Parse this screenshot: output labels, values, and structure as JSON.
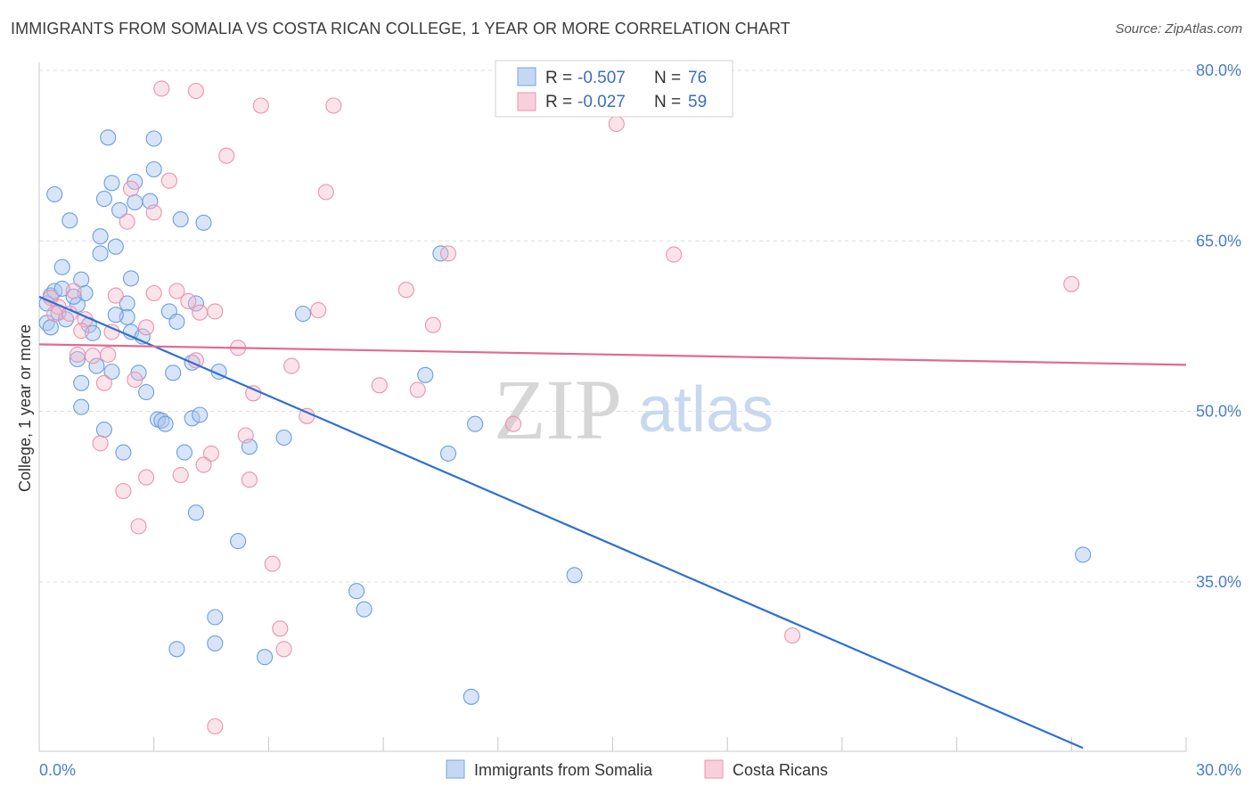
{
  "header": {
    "title": "IMMIGRANTS FROM SOMALIA VS COSTA RICAN COLLEGE, 1 YEAR OR MORE CORRELATION CHART",
    "source": "Source: ZipAtlas.com"
  },
  "watermark": {
    "zip": "ZIP",
    "atlas": "atlas"
  },
  "legend": {
    "rows": [
      {
        "r_label": "R = ",
        "r_value": "-0.507",
        "n_label": "N = ",
        "n_value": "76",
        "color": "#a9c6f0"
      },
      {
        "r_label": "R = ",
        "r_value": "-0.027",
        "n_label": "N = ",
        "n_value": "59",
        "color": "#f6b8cb"
      }
    ]
  },
  "bottom_legend": {
    "items": [
      {
        "label": "Immigrants from Somalia",
        "color": "#a9c6f0"
      },
      {
        "label": "Costa Ricans",
        "color": "#f6b8cb"
      }
    ]
  },
  "chart_data": {
    "type": "scatter",
    "title": "IMMIGRANTS FROM SOMALIA VS COSTA RICAN COLLEGE, 1 YEAR OR MORE CORRELATION CHART",
    "xlabel": "",
    "ylabel": "College, 1 year or more",
    "xlim": [
      0,
      30
    ],
    "ylim": [
      21,
      82
    ],
    "x_tick_labels": [
      "0.0%",
      "30.0%"
    ],
    "y_ticks": [
      35,
      50,
      65,
      80
    ],
    "y_tick_labels": [
      "35.0%",
      "50.0%",
      "65.0%",
      "80.0%"
    ],
    "grid": true,
    "legend_position": "top-center",
    "series": [
      {
        "name": "Immigrants from Somalia",
        "color": "#6b9ee0",
        "line_color": "#2f6fd1",
        "trend": {
          "x": [
            0.0,
            27.3
          ],
          "y": [
            60.1,
            20.4
          ]
        },
        "points": [
          [
            0.3,
            60.2
          ],
          [
            0.2,
            59.5
          ],
          [
            0.4,
            60.6
          ],
          [
            0.6,
            60.8
          ],
          [
            0.4,
            69.1
          ],
          [
            0.8,
            66.8
          ],
          [
            1.1,
            61.6
          ],
          [
            0.6,
            62.7
          ],
          [
            1.0,
            59.4
          ],
          [
            0.5,
            58.7
          ],
          [
            0.2,
            57.8
          ],
          [
            1.3,
            57.6
          ],
          [
            1.2,
            60.4
          ],
          [
            1.6,
            63.9
          ],
          [
            1.6,
            65.4
          ],
          [
            1.8,
            74.1
          ],
          [
            1.9,
            70.1
          ],
          [
            1.7,
            68.7
          ],
          [
            2.1,
            67.7
          ],
          [
            2.0,
            64.5
          ],
          [
            2.5,
            70.2
          ],
          [
            2.5,
            68.4
          ],
          [
            2.4,
            61.7
          ],
          [
            2.3,
            59.5
          ],
          [
            2.3,
            58.3
          ],
          [
            2.4,
            57.0
          ],
          [
            3.0,
            74.0
          ],
          [
            3.0,
            71.3
          ],
          [
            2.9,
            68.5
          ],
          [
            3.7,
            66.9
          ],
          [
            4.3,
            66.6
          ],
          [
            3.4,
            58.8
          ],
          [
            3.6,
            57.9
          ],
          [
            4.1,
            59.5
          ],
          [
            2.7,
            56.6
          ],
          [
            1.5,
            54.0
          ],
          [
            1.0,
            54.6
          ],
          [
            1.1,
            52.5
          ],
          [
            1.1,
            50.4
          ],
          [
            1.9,
            53.5
          ],
          [
            2.6,
            53.4
          ],
          [
            2.8,
            51.7
          ],
          [
            3.1,
            49.3
          ],
          [
            3.2,
            49.2
          ],
          [
            3.3,
            48.9
          ],
          [
            4.0,
            49.4
          ],
          [
            4.2,
            49.7
          ],
          [
            3.5,
            53.4
          ],
          [
            4.0,
            54.3
          ],
          [
            4.7,
            53.5
          ],
          [
            1.7,
            48.4
          ],
          [
            2.2,
            46.4
          ],
          [
            3.8,
            46.4
          ],
          [
            5.5,
            46.9
          ],
          [
            6.4,
            47.7
          ],
          [
            6.9,
            58.6
          ],
          [
            10.1,
            53.2
          ],
          [
            10.7,
            46.3
          ],
          [
            11.4,
            48.9
          ],
          [
            10.5,
            63.9
          ],
          [
            4.1,
            41.1
          ],
          [
            5.2,
            38.6
          ],
          [
            4.6,
            31.9
          ],
          [
            4.6,
            29.6
          ],
          [
            3.6,
            29.1
          ],
          [
            5.9,
            28.4
          ],
          [
            8.3,
            34.2
          ],
          [
            8.5,
            32.6
          ],
          [
            11.3,
            24.9
          ],
          [
            14.0,
            35.6
          ],
          [
            27.3,
            37.4
          ],
          [
            0.7,
            58.1
          ],
          [
            1.4,
            56.9
          ],
          [
            0.9,
            60.1
          ],
          [
            2.0,
            58.5
          ],
          [
            0.3,
            57.4
          ]
        ]
      },
      {
        "name": "Costa Ricans",
        "color": "#f0a0b9",
        "line_color": "#e06a94",
        "trend": {
          "x": [
            0.0,
            30.0
          ],
          "y": [
            55.9,
            54.1
          ]
        },
        "points": [
          [
            3.2,
            78.4
          ],
          [
            4.1,
            78.2
          ],
          [
            5.8,
            76.9
          ],
          [
            7.7,
            76.9
          ],
          [
            4.9,
            72.5
          ],
          [
            3.4,
            70.3
          ],
          [
            2.4,
            69.6
          ],
          [
            2.3,
            66.7
          ],
          [
            3.0,
            67.5
          ],
          [
            7.5,
            69.3
          ],
          [
            15.1,
            75.3
          ],
          [
            10.7,
            63.9
          ],
          [
            16.6,
            63.8
          ],
          [
            27.0,
            61.2
          ],
          [
            2.0,
            60.2
          ],
          [
            0.9,
            60.6
          ],
          [
            0.3,
            60.0
          ],
          [
            0.5,
            59.2
          ],
          [
            0.8,
            58.6
          ],
          [
            1.2,
            58.1
          ],
          [
            3.0,
            60.4
          ],
          [
            3.6,
            60.6
          ],
          [
            3.9,
            59.7
          ],
          [
            4.2,
            58.7
          ],
          [
            4.6,
            58.8
          ],
          [
            7.3,
            58.9
          ],
          [
            9.6,
            60.7
          ],
          [
            10.3,
            57.6
          ],
          [
            1.1,
            57.1
          ],
          [
            1.9,
            57.0
          ],
          [
            2.8,
            57.4
          ],
          [
            5.2,
            55.6
          ],
          [
            1.0,
            55.0
          ],
          [
            1.4,
            54.9
          ],
          [
            1.8,
            55.0
          ],
          [
            4.1,
            54.5
          ],
          [
            6.6,
            54.0
          ],
          [
            2.5,
            52.8
          ],
          [
            1.7,
            52.5
          ],
          [
            5.6,
            51.6
          ],
          [
            8.9,
            52.3
          ],
          [
            9.9,
            51.9
          ],
          [
            7.0,
            49.6
          ],
          [
            12.4,
            48.9
          ],
          [
            5.4,
            47.9
          ],
          [
            1.6,
            47.2
          ],
          [
            4.5,
            46.3
          ],
          [
            2.8,
            44.2
          ],
          [
            3.7,
            44.4
          ],
          [
            4.3,
            45.3
          ],
          [
            5.5,
            44.0
          ],
          [
            2.2,
            43.0
          ],
          [
            2.6,
            39.9
          ],
          [
            6.1,
            36.6
          ],
          [
            6.3,
            30.9
          ],
          [
            6.4,
            29.1
          ],
          [
            19.7,
            30.3
          ],
          [
            4.6,
            22.3
          ],
          [
            0.4,
            58.6
          ]
        ]
      }
    ]
  }
}
